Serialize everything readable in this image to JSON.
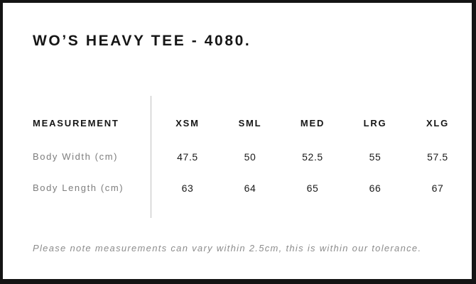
{
  "page": {
    "title": "WO’S HEAVY TEE - 4080.",
    "note": "Please note measurements can vary within 2.5cm, this is within our tolerance."
  },
  "size_chart": {
    "measurement_header": "MEASUREMENT",
    "size_headers": [
      "XSM",
      "SML",
      "MED",
      "LRG",
      "XLG"
    ],
    "rows": [
      {
        "label": "Body Width (cm)",
        "values": [
          "47.5",
          "50",
          "52.5",
          "55",
          "57.5"
        ]
      },
      {
        "label": "Body Length (cm)",
        "values": [
          "63",
          "64",
          "65",
          "66",
          "67"
        ]
      }
    ]
  },
  "colors": {
    "frame_border": "#141414",
    "text": "#161616",
    "row_label": "#7d7d7d",
    "note_text": "#8c8c8c",
    "divider": "#bfbfbf",
    "background": "#ffffff"
  }
}
